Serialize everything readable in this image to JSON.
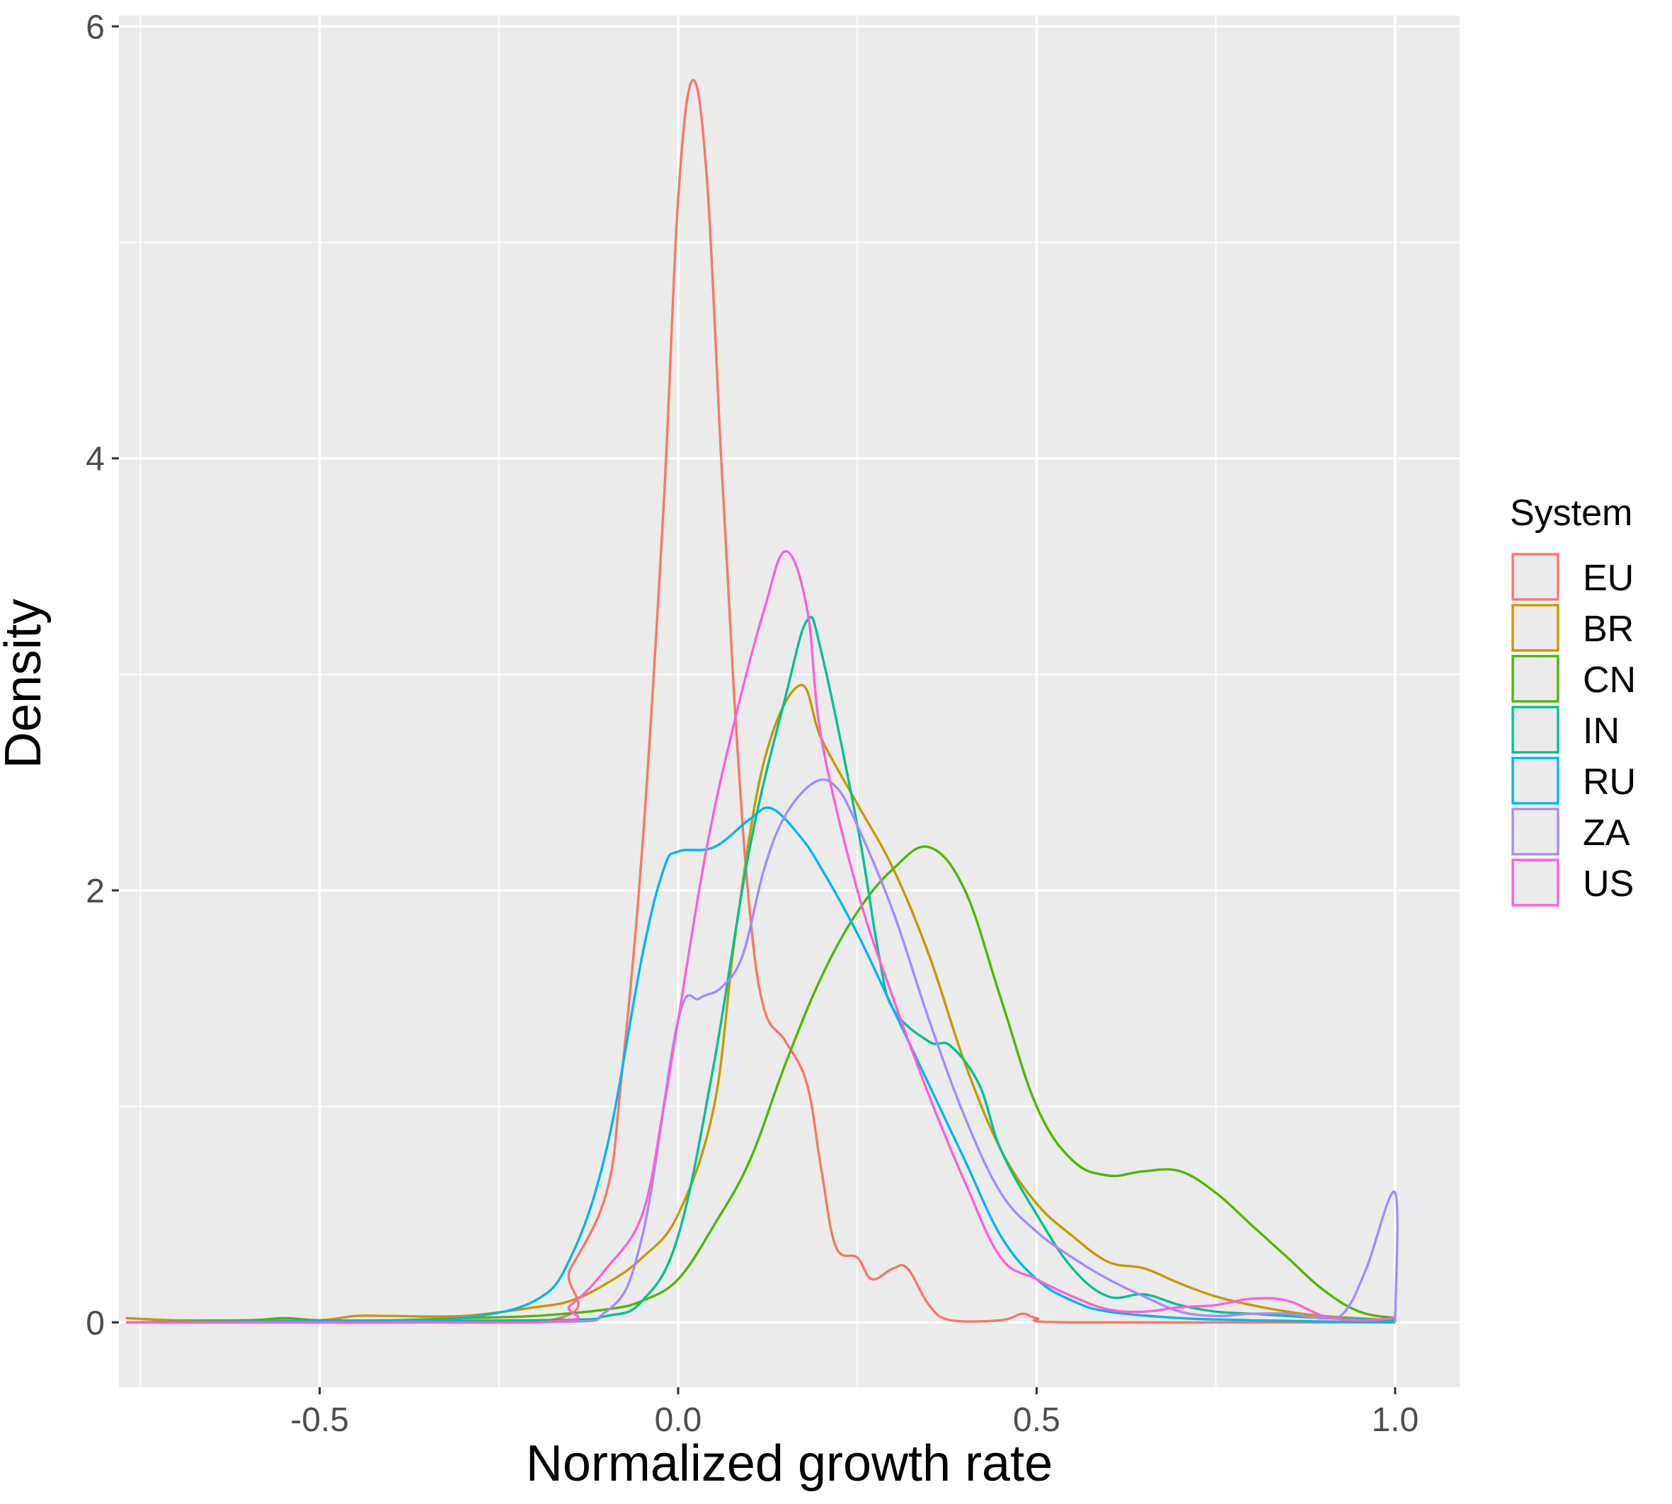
{
  "chart_data": {
    "type": "line",
    "title": "",
    "xlabel": "Normalized growth rate",
    "ylabel": "Density",
    "xlim": [
      -0.78,
      1.09
    ],
    "ylim": [
      -0.3,
      6.05
    ],
    "x_ticks": [
      -0.5,
      0.0,
      0.5,
      1.0
    ],
    "x_tick_labels": [
      "-0.5",
      "0.0",
      "0.5",
      "1.0"
    ],
    "y_ticks": [
      0,
      2,
      4,
      6
    ],
    "y_tick_labels": [
      "0",
      "2",
      "4",
      "6"
    ],
    "grid": true,
    "panel_color": "#ebebeb",
    "legend": {
      "title": "System",
      "position": "right"
    },
    "series": [
      {
        "name": "EU",
        "color": "#F8766D",
        "points": [
          [
            -0.77,
            0
          ],
          [
            -0.2,
            0
          ],
          [
            -0.15,
            0.25
          ],
          [
            -0.1,
            0.6
          ],
          [
            -0.08,
            1.1
          ],
          [
            -0.05,
            2.2
          ],
          [
            -0.02,
            3.8
          ],
          [
            0.0,
            5.2
          ],
          [
            0.02,
            5.75
          ],
          [
            0.04,
            5.3
          ],
          [
            0.06,
            4.0
          ],
          [
            0.08,
            2.8
          ],
          [
            0.1,
            1.9
          ],
          [
            0.12,
            1.45
          ],
          [
            0.15,
            1.3
          ],
          [
            0.18,
            1.1
          ],
          [
            0.2,
            0.7
          ],
          [
            0.22,
            0.35
          ],
          [
            0.25,
            0.3
          ],
          [
            0.27,
            0.2
          ],
          [
            0.3,
            0.25
          ],
          [
            0.32,
            0.25
          ],
          [
            0.35,
            0.08
          ],
          [
            0.38,
            0.01
          ],
          [
            0.45,
            0.01
          ],
          [
            0.48,
            0.04
          ],
          [
            0.5,
            0.02
          ],
          [
            0.55,
            0
          ],
          [
            1.0,
            0
          ]
        ]
      },
      {
        "name": "BR",
        "color": "#C49A00",
        "points": [
          [
            -0.77,
            0.02
          ],
          [
            -0.7,
            0.01
          ],
          [
            -0.6,
            0.01
          ],
          [
            -0.5,
            0.01
          ],
          [
            -0.45,
            0.03
          ],
          [
            -0.4,
            0.03
          ],
          [
            -0.3,
            0.03
          ],
          [
            -0.2,
            0.07
          ],
          [
            -0.15,
            0.1
          ],
          [
            -0.1,
            0.18
          ],
          [
            -0.05,
            0.3
          ],
          [
            0.0,
            0.5
          ],
          [
            0.05,
            1.0
          ],
          [
            0.08,
            1.8
          ],
          [
            0.12,
            2.6
          ],
          [
            0.17,
            2.95
          ],
          [
            0.2,
            2.7
          ],
          [
            0.25,
            2.4
          ],
          [
            0.3,
            2.1
          ],
          [
            0.35,
            1.7
          ],
          [
            0.4,
            1.2
          ],
          [
            0.45,
            0.8
          ],
          [
            0.5,
            0.55
          ],
          [
            0.55,
            0.4
          ],
          [
            0.6,
            0.28
          ],
          [
            0.65,
            0.25
          ],
          [
            0.7,
            0.18
          ],
          [
            0.75,
            0.12
          ],
          [
            0.8,
            0.08
          ],
          [
            0.85,
            0.05
          ],
          [
            0.9,
            0.03
          ],
          [
            1.0,
            0.01
          ]
        ]
      },
      {
        "name": "CN",
        "color": "#53B400",
        "points": [
          [
            -0.77,
            0
          ],
          [
            -0.6,
            0.01
          ],
          [
            -0.55,
            0.02
          ],
          [
            -0.5,
            0.01
          ],
          [
            -0.4,
            0.01
          ],
          [
            -0.3,
            0.02
          ],
          [
            -0.2,
            0.03
          ],
          [
            -0.1,
            0.06
          ],
          [
            -0.05,
            0.1
          ],
          [
            0.0,
            0.2
          ],
          [
            0.05,
            0.45
          ],
          [
            0.1,
            0.75
          ],
          [
            0.15,
            1.2
          ],
          [
            0.2,
            1.6
          ],
          [
            0.25,
            1.9
          ],
          [
            0.3,
            2.1
          ],
          [
            0.35,
            2.2
          ],
          [
            0.4,
            2.0
          ],
          [
            0.45,
            1.5
          ],
          [
            0.5,
            1.0
          ],
          [
            0.55,
            0.75
          ],
          [
            0.6,
            0.68
          ],
          [
            0.65,
            0.7
          ],
          [
            0.7,
            0.7
          ],
          [
            0.75,
            0.6
          ],
          [
            0.8,
            0.45
          ],
          [
            0.85,
            0.3
          ],
          [
            0.9,
            0.15
          ],
          [
            0.95,
            0.05
          ],
          [
            1.0,
            0.02
          ]
        ]
      },
      {
        "name": "IN",
        "color": "#00C094",
        "points": [
          [
            -0.77,
            0
          ],
          [
            -0.2,
            0.01
          ],
          [
            -0.1,
            0.03
          ],
          [
            -0.05,
            0.1
          ],
          [
            0.0,
            0.4
          ],
          [
            0.05,
            1.2
          ],
          [
            0.1,
            2.2
          ],
          [
            0.15,
            2.9
          ],
          [
            0.18,
            3.25
          ],
          [
            0.2,
            3.1
          ],
          [
            0.25,
            2.3
          ],
          [
            0.28,
            1.7
          ],
          [
            0.3,
            1.45
          ],
          [
            0.35,
            1.3
          ],
          [
            0.38,
            1.28
          ],
          [
            0.42,
            1.1
          ],
          [
            0.45,
            0.8
          ],
          [
            0.5,
            0.5
          ],
          [
            0.55,
            0.25
          ],
          [
            0.6,
            0.12
          ],
          [
            0.65,
            0.13
          ],
          [
            0.7,
            0.08
          ],
          [
            0.75,
            0.05
          ],
          [
            0.8,
            0.04
          ],
          [
            0.85,
            0.03
          ],
          [
            0.9,
            0.02
          ],
          [
            1.0,
            0.01
          ]
        ]
      },
      {
        "name": "RU",
        "color": "#00B6EB",
        "points": [
          [
            -0.77,
            0
          ],
          [
            -0.4,
            0.01
          ],
          [
            -0.3,
            0.02
          ],
          [
            -0.2,
            0.1
          ],
          [
            -0.15,
            0.3
          ],
          [
            -0.1,
            0.8
          ],
          [
            -0.05,
            1.7
          ],
          [
            -0.02,
            2.1
          ],
          [
            0.0,
            2.18
          ],
          [
            0.05,
            2.2
          ],
          [
            0.1,
            2.33
          ],
          [
            0.13,
            2.38
          ],
          [
            0.17,
            2.25
          ],
          [
            0.2,
            2.1
          ],
          [
            0.25,
            1.8
          ],
          [
            0.3,
            1.45
          ],
          [
            0.35,
            1.1
          ],
          [
            0.4,
            0.75
          ],
          [
            0.45,
            0.4
          ],
          [
            0.5,
            0.2
          ],
          [
            0.55,
            0.1
          ],
          [
            0.6,
            0.05
          ],
          [
            0.7,
            0.02
          ],
          [
            0.8,
            0.01
          ],
          [
            1.0,
            0
          ]
        ]
      },
      {
        "name": "ZA",
        "color": "#A58AFF",
        "points": [
          [
            -0.77,
            0
          ],
          [
            -0.2,
            0
          ],
          [
            -0.1,
            0.05
          ],
          [
            -0.05,
            0.4
          ],
          [
            0.0,
            1.4
          ],
          [
            0.03,
            1.5
          ],
          [
            0.06,
            1.55
          ],
          [
            0.09,
            1.7
          ],
          [
            0.12,
            2.1
          ],
          [
            0.15,
            2.35
          ],
          [
            0.19,
            2.5
          ],
          [
            0.22,
            2.48
          ],
          [
            0.25,
            2.3
          ],
          [
            0.3,
            1.9
          ],
          [
            0.35,
            1.4
          ],
          [
            0.4,
            0.95
          ],
          [
            0.45,
            0.6
          ],
          [
            0.5,
            0.42
          ],
          [
            0.55,
            0.3
          ],
          [
            0.6,
            0.2
          ],
          [
            0.65,
            0.12
          ],
          [
            0.7,
            0.05
          ],
          [
            0.75,
            0.03
          ],
          [
            0.8,
            0.04
          ],
          [
            0.85,
            0.04
          ],
          [
            0.9,
            0.02
          ],
          [
            0.93,
            0.05
          ],
          [
            0.96,
            0.25
          ],
          [
            1.0,
            0.6
          ],
          [
            1.0,
            0
          ]
        ]
      },
      {
        "name": "US",
        "color": "#FB61D7",
        "points": [
          [
            -0.77,
            0
          ],
          [
            -0.2,
            0
          ],
          [
            -0.15,
            0.08
          ],
          [
            -0.1,
            0.25
          ],
          [
            -0.05,
            0.5
          ],
          [
            -0.02,
            1.0
          ],
          [
            0.0,
            1.4
          ],
          [
            0.04,
            2.2
          ],
          [
            0.08,
            2.8
          ],
          [
            0.12,
            3.3
          ],
          [
            0.15,
            3.57
          ],
          [
            0.18,
            3.3
          ],
          [
            0.2,
            2.7
          ],
          [
            0.25,
            2.0
          ],
          [
            0.3,
            1.5
          ],
          [
            0.35,
            1.05
          ],
          [
            0.4,
            0.65
          ],
          [
            0.45,
            0.3
          ],
          [
            0.5,
            0.2
          ],
          [
            0.55,
            0.12
          ],
          [
            0.6,
            0.06
          ],
          [
            0.65,
            0.05
          ],
          [
            0.7,
            0.07
          ],
          [
            0.75,
            0.08
          ],
          [
            0.8,
            0.11
          ],
          [
            0.85,
            0.1
          ],
          [
            0.9,
            0.03
          ],
          [
            0.95,
            0.01
          ],
          [
            1.0,
            0.02
          ]
        ]
      }
    ]
  }
}
